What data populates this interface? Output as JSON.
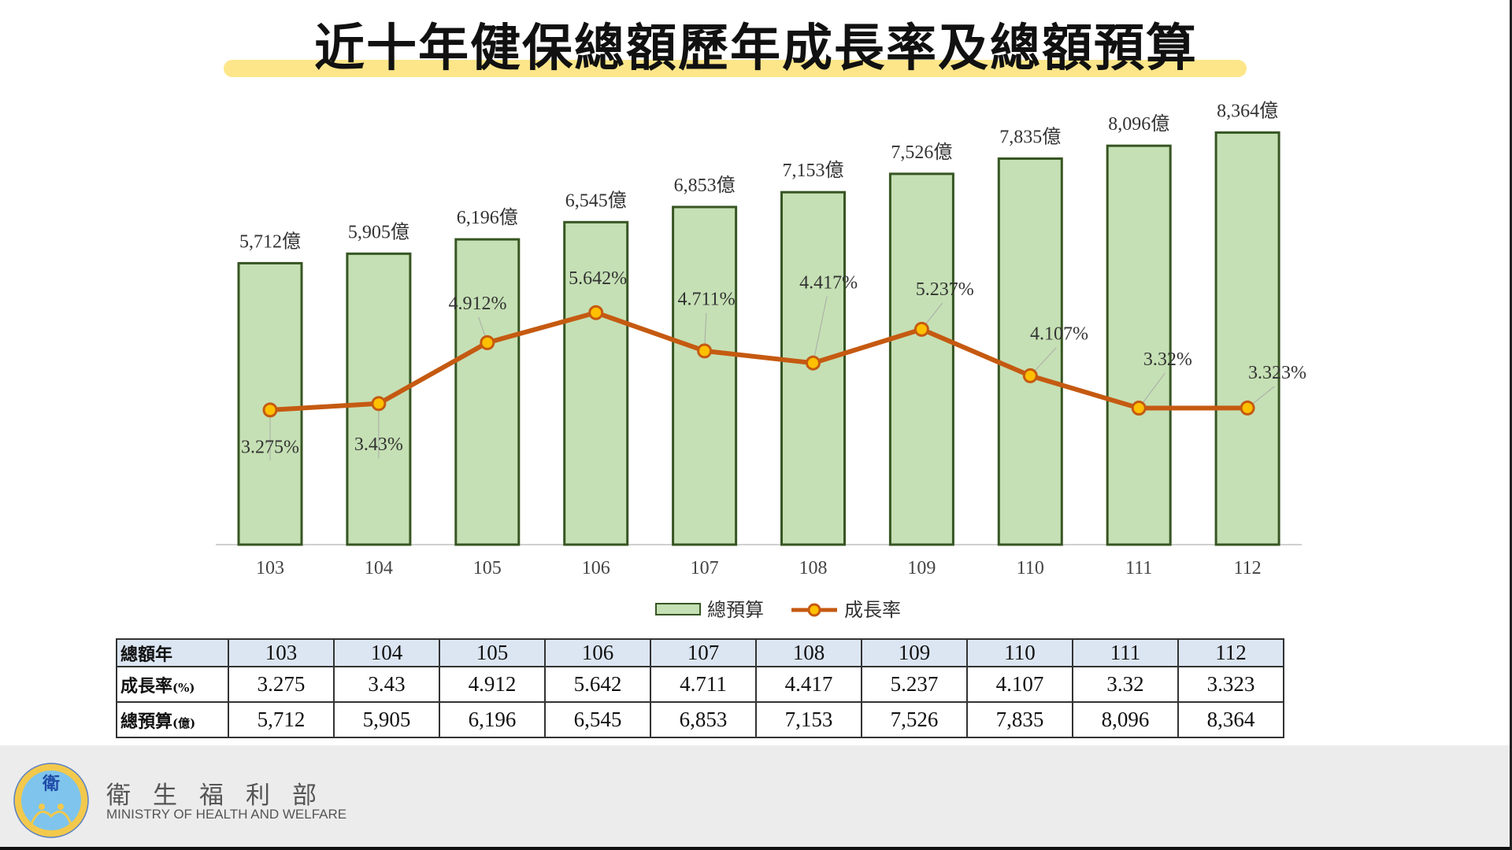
{
  "title": "近十年健保總額歷年成長率及總額預算",
  "chart_data": {
    "type": "bar+line",
    "title": "近十年健保總額歷年成長率及總額預算",
    "categories": [
      "103",
      "104",
      "105",
      "106",
      "107",
      "108",
      "109",
      "110",
      "111",
      "112"
    ],
    "series": [
      {
        "name": "總預算",
        "type": "bar",
        "unit": "億",
        "values": [
          5712,
          5905,
          6196,
          6545,
          6853,
          7153,
          7526,
          7835,
          8096,
          8364
        ],
        "labels": [
          "5,712億",
          "5,905億",
          "6,196億",
          "6,545億",
          "6,853億",
          "7,153億",
          "7,526億",
          "7,835億",
          "8,096億",
          "8,364億"
        ]
      },
      {
        "name": "成長率",
        "type": "line",
        "unit": "%",
        "values": [
          3.275,
          3.43,
          4.912,
          5.642,
          4.711,
          4.417,
          5.237,
          4.107,
          3.32,
          3.323
        ],
        "labels": [
          "3.275%",
          "3.43%",
          "4.912%",
          "5.642%",
          "4.711%",
          "4.417%",
          "5.237%",
          "4.107%",
          "3.32%",
          "3.323%"
        ]
      }
    ],
    "legend": [
      "總預算",
      "成長率"
    ],
    "legend_position": "bottom",
    "colors": {
      "bar_fill": "#c5e0b4",
      "bar_stroke": "#375623",
      "line": "#c55a11",
      "marker": "#ffc000"
    }
  },
  "table": {
    "row_headers": [
      "總額年",
      "成長率",
      "(%)",
      "總預算",
      "(億)"
    ],
    "years": [
      "103",
      "104",
      "105",
      "106",
      "107",
      "108",
      "109",
      "110",
      "111",
      "112"
    ],
    "growth": [
      "3.275",
      "3.43",
      "4.912",
      "5.642",
      "4.711",
      "4.417",
      "5.237",
      "4.107",
      "3.32",
      "3.323"
    ],
    "budget": [
      "5,712",
      "5,905",
      "6,196",
      "6,545",
      "6,853",
      "7,153",
      "7,526",
      "7,835",
      "8,096",
      "8,364"
    ]
  },
  "footer": {
    "org_zh": "衛生福利部",
    "org_en": "MINISTRY OF HEALTH AND WELFARE",
    "logo_text": "Ministry of Health and Welfare 衛生福利部"
  }
}
